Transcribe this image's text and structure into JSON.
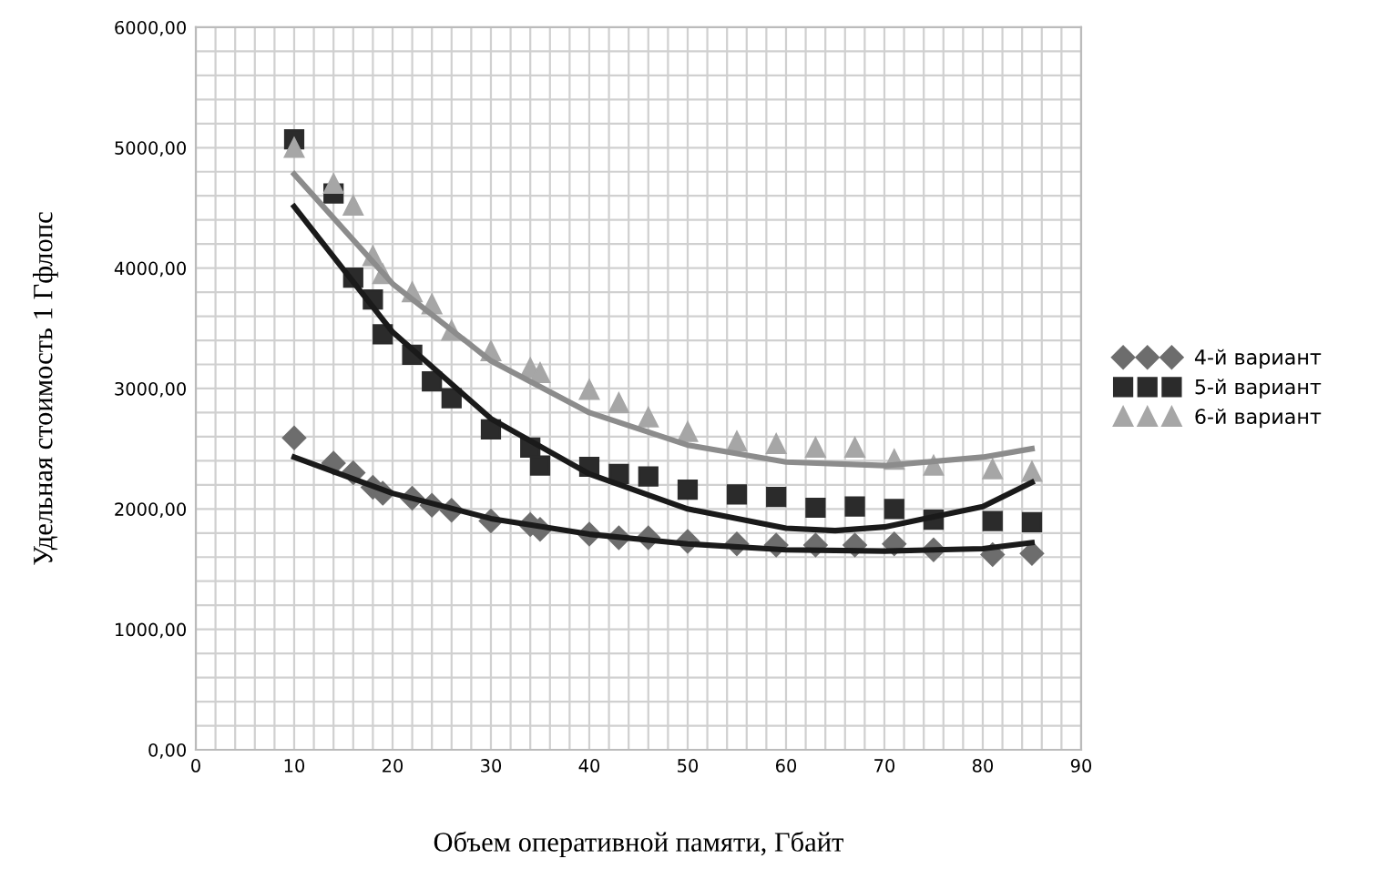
{
  "chart_data": {
    "type": "scatter",
    "xlabel": "Объем оперативной памяти, Гбайт",
    "ylabel": "Удельная стоимость 1 Гфлопс",
    "xlim": [
      0,
      90
    ],
    "ylim": [
      0,
      6000
    ],
    "xticks": [
      0,
      {
        "value": 2,
        "label": null
      },
      {
        "value": 4,
        "label": null
      },
      {
        "value": 6,
        "label": null
      },
      {
        "value": 8,
        "label": null
      },
      10,
      {
        "value": 12,
        "label": null
      },
      {
        "value": 14,
        "label": null
      },
      {
        "value": 16,
        "label": null
      },
      {
        "value": 18,
        "label": null
      },
      20,
      {
        "value": 22,
        "label": null
      },
      {
        "value": 24,
        "label": null
      },
      {
        "value": 26,
        "label": null
      },
      {
        "value": 28,
        "label": null
      },
      30,
      {
        "value": 32,
        "label": null
      },
      {
        "value": 34,
        "label": null
      },
      {
        "value": 36,
        "label": null
      },
      {
        "value": 38,
        "label": null
      },
      40,
      {
        "value": 42,
        "label": null
      },
      {
        "value": 44,
        "label": null
      },
      {
        "value": 46,
        "label": null
      },
      {
        "value": 48,
        "label": null
      },
      50,
      {
        "value": 52,
        "label": null
      },
      {
        "value": 54,
        "label": null
      },
      {
        "value": 56,
        "label": null
      },
      {
        "value": 58,
        "label": null
      },
      60,
      {
        "value": 62,
        "label": null
      },
      {
        "value": 64,
        "label": null
      },
      {
        "value": 66,
        "label": null
      },
      {
        "value": 68,
        "label": null
      },
      70,
      {
        "value": 72,
        "label": null
      },
      {
        "value": 74,
        "label": null
      },
      {
        "value": 76,
        "label": null
      },
      {
        "value": 78,
        "label": null
      },
      80,
      {
        "value": 82,
        "label": null
      },
      {
        "value": 84,
        "label": null
      },
      {
        "value": 86,
        "label": null
      },
      {
        "value": 88,
        "label": null
      },
      90
    ],
    "yticks": [
      {
        "value": 0,
        "label": "0,00"
      },
      {
        "value": 200,
        "label": null
      },
      {
        "value": 400,
        "label": null
      },
      {
        "value": 600,
        "label": null
      },
      {
        "value": 800,
        "label": null
      },
      {
        "value": 1000,
        "label": "1000,00"
      },
      {
        "value": 1200,
        "label": null
      },
      {
        "value": 1400,
        "label": null
      },
      {
        "value": 1600,
        "label": null
      },
      {
        "value": 1800,
        "label": null
      },
      {
        "value": 2000,
        "label": "2000,00"
      },
      {
        "value": 2200,
        "label": null
      },
      {
        "value": 2400,
        "label": null
      },
      {
        "value": 2600,
        "label": null
      },
      {
        "value": 2800,
        "label": null
      },
      {
        "value": 3000,
        "label": "3000,00"
      },
      {
        "value": 3200,
        "label": null
      },
      {
        "value": 3400,
        "label": null
      },
      {
        "value": 3600,
        "label": null
      },
      {
        "value": 3800,
        "label": null
      },
      {
        "value": 4000,
        "label": "4000,00"
      },
      {
        "value": 4200,
        "label": null
      },
      {
        "value": 4400,
        "label": null
      },
      {
        "value": 4600,
        "label": null
      },
      {
        "value": 4800,
        "label": null
      },
      {
        "value": 5000,
        "label": "5000,00"
      },
      {
        "value": 5200,
        "label": null
      },
      {
        "value": 5400,
        "label": null
      },
      {
        "value": 5600,
        "label": null
      },
      {
        "value": 5800,
        "label": null
      },
      {
        "value": 6000,
        "label": "6000,00"
      }
    ],
    "grid": true,
    "legend": "right",
    "x": [
      10,
      14,
      16,
      18,
      19,
      22,
      24,
      26,
      30,
      34,
      35,
      40,
      43,
      46,
      50,
      55,
      59,
      63,
      67,
      71,
      75,
      81,
      85
    ],
    "series": [
      {
        "name": "4-й вариант",
        "color": "#6d6d6d",
        "marker": "diamond",
        "values": [
          2590,
          2380,
          2300,
          2180,
          2130,
          2090,
          2030,
          1990,
          1900,
          1870,
          1830,
          1790,
          1760,
          1760,
          1730,
          1710,
          1700,
          1700,
          1700,
          1710,
          1660,
          1620,
          1630
        ]
      },
      {
        "name": "5-й вариант",
        "color": "#2b2b2b",
        "marker": "square",
        "values": [
          5070,
          4620,
          3920,
          3740,
          3450,
          3280,
          3060,
          2920,
          2660,
          2510,
          2360,
          2350,
          2290,
          2270,
          2160,
          2120,
          2100,
          2010,
          2020,
          2000,
          1910,
          1900,
          1890
        ]
      },
      {
        "name": "6-й вариант",
        "color": "#a6a6a6",
        "marker": "triangle",
        "values": [
          5000,
          4700,
          4520,
          4100,
          3950,
          3800,
          3700,
          3480,
          3310,
          3170,
          3130,
          2990,
          2880,
          2760,
          2640,
          2560,
          2540,
          2510,
          2510,
          2410,
          2360,
          2330,
          2310
        ]
      },
      {
        "type": "line",
        "color": "#1a1a1a",
        "marker": "none",
        "x": [
          10,
          20,
          30,
          40,
          50,
          60,
          70,
          80,
          85
        ],
        "values": [
          2430,
          2130,
          1920,
          1790,
          1710,
          1660,
          1650,
          1670,
          1720
        ]
      },
      {
        "type": "line",
        "color": "#1a1a1a",
        "marker": "none",
        "x": [
          10,
          20,
          30,
          40,
          50,
          60,
          65,
          70,
          80,
          85
        ],
        "values": [
          4510,
          3470,
          2750,
          2290,
          2000,
          1840,
          1820,
          1850,
          2020,
          2220
        ]
      },
      {
        "type": "line",
        "color": "#8c8c8c",
        "marker": "none",
        "x": [
          10,
          20,
          30,
          40,
          50,
          60,
          70,
          80,
          85
        ],
        "values": [
          4780,
          3870,
          3230,
          2800,
          2530,
          2390,
          2360,
          2430,
          2500
        ]
      }
    ]
  }
}
